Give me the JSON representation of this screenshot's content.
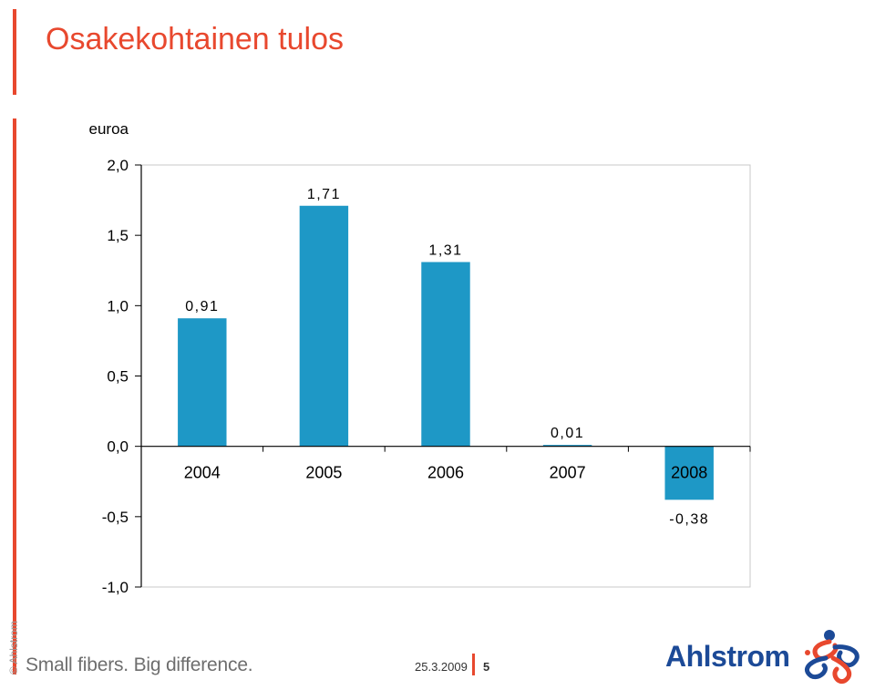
{
  "header": {
    "title": "Osakekohtainen tulos"
  },
  "chart_data": {
    "type": "bar",
    "title": "Osakekohtainen tulos",
    "ylabel": "euroa",
    "xlabel": "",
    "categories": [
      "2004",
      "2005",
      "2006",
      "2007",
      "2008"
    ],
    "values": [
      0.91,
      1.71,
      1.31,
      0.01,
      -0.38
    ],
    "value_labels": [
      "0,91",
      "1,71",
      "1,31",
      "0,01",
      "-0,38"
    ],
    "ylim": [
      -1.0,
      2.0
    ],
    "yticks": [
      2.0,
      1.5,
      1.0,
      0.5,
      0.0,
      -0.5,
      -1.0
    ],
    "ytick_labels": [
      "2,0",
      "1,5",
      "1,0",
      "0,5",
      "0,0",
      "-0,5",
      "-1,0"
    ],
    "grid": false,
    "legend": "none",
    "bar_color": "#1e98c6"
  },
  "footer": {
    "copyright": "© Ahlstrom",
    "tagline": "Small fibers. Big difference.",
    "date": "25.3.2009",
    "page": "5",
    "brand": "Ahlstrom",
    "brand_color": "#1c4a97",
    "accent_color": "#e8482e"
  }
}
